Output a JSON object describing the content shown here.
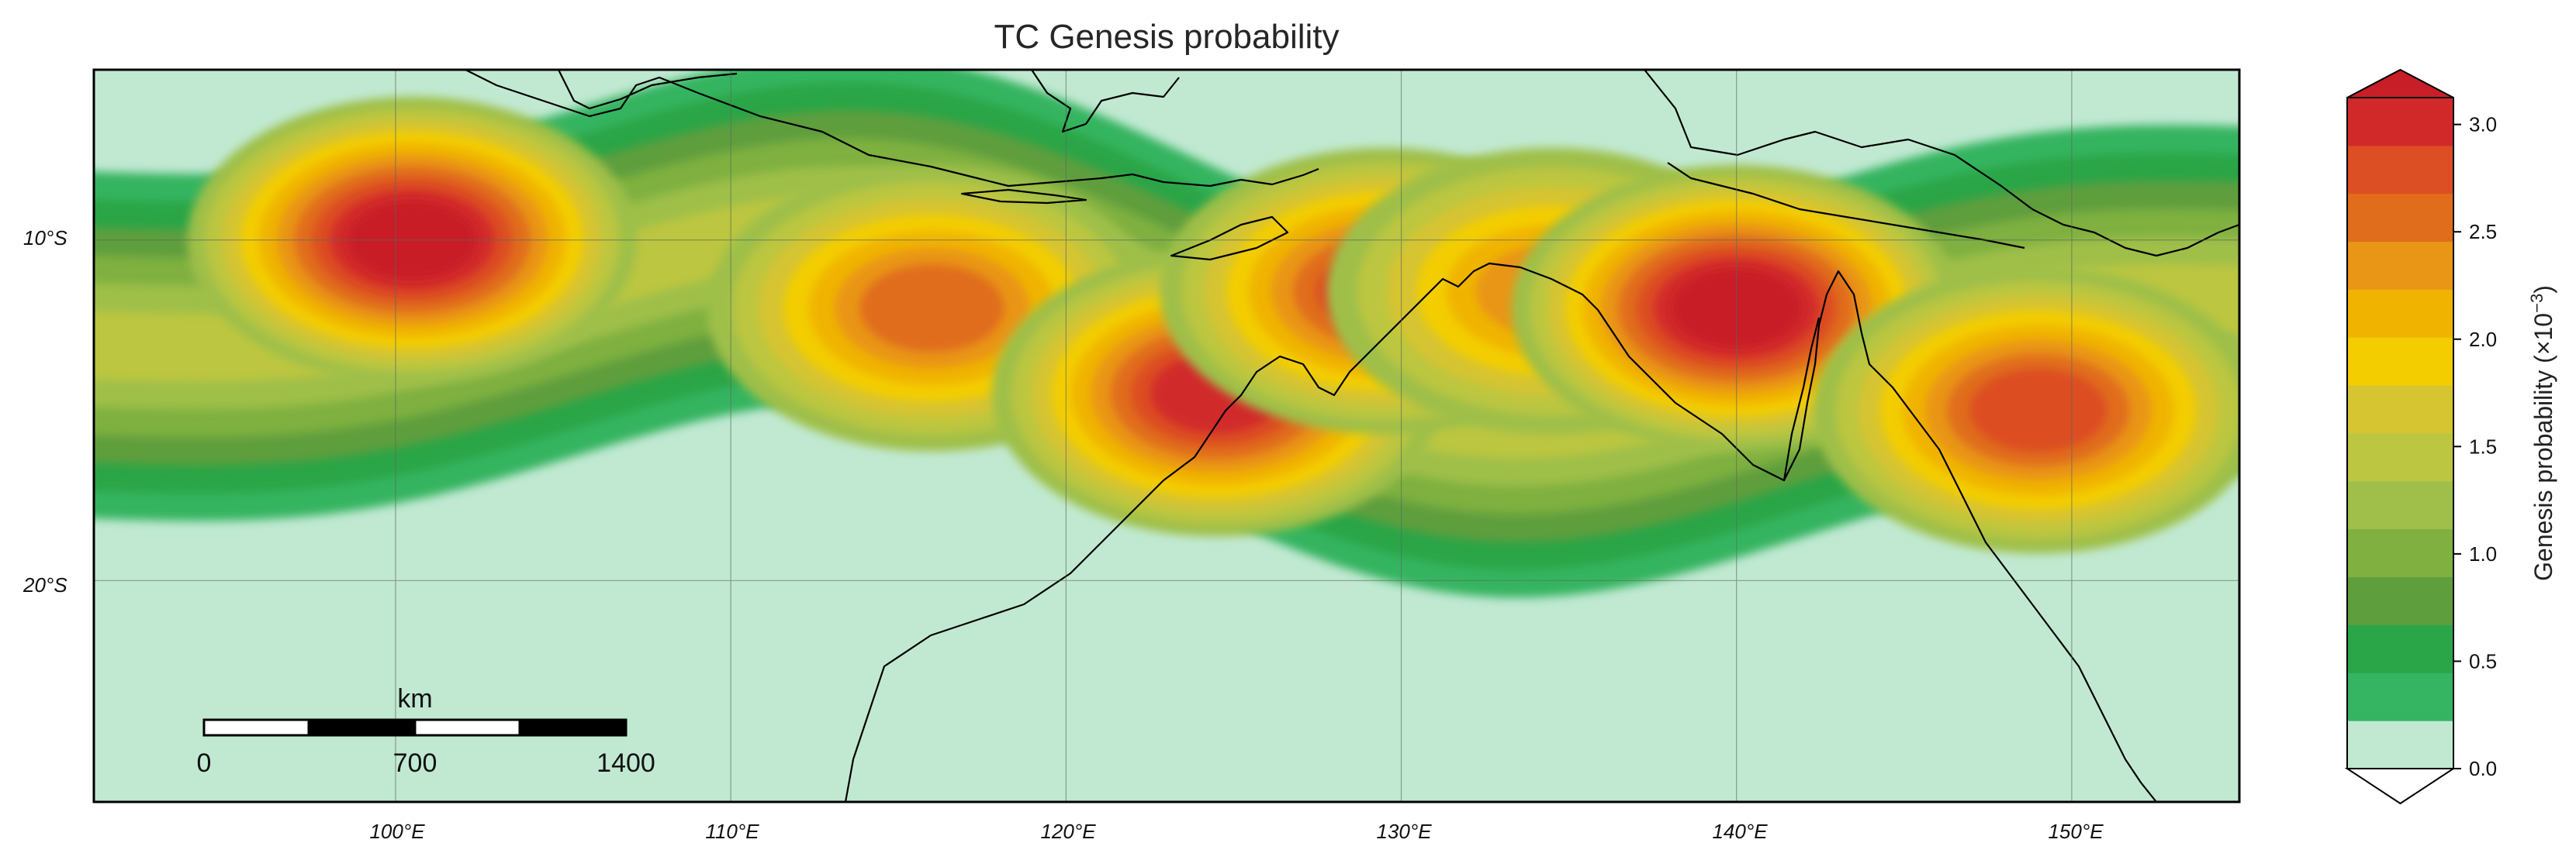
{
  "title": "TC Genesis probability",
  "colorbar": {
    "label": "Genesis probability (×10",
    "label_exponent": "−3",
    "label_close": ")",
    "ticks": [
      "0.0",
      "0.5",
      "1.0",
      "1.5",
      "2.0",
      "2.5",
      "3.0"
    ],
    "tick_values": [
      0.0,
      0.5,
      1.0,
      1.5,
      2.0,
      2.5,
      3.0
    ],
    "range": [
      0.0,
      3.125
    ],
    "extend": "both",
    "colors": [
      "#c1e9d2",
      "#35b461",
      "#2aa547",
      "#5e9e3c",
      "#7fb040",
      "#9fbf4a",
      "#bcc640",
      "#d6c431",
      "#f3cd00",
      "#f0b400",
      "#e99515",
      "#e06d1b",
      "#dc4e24",
      "#d1292a",
      "#c81e28"
    ]
  },
  "map": {
    "lon_range": [
      91,
      155
    ],
    "lat_range": [
      -26.5,
      -5
    ],
    "gridlines": true,
    "lon_ticks": [
      "100°E",
      "110°E",
      "120°E",
      "130°E",
      "140°E",
      "150°E"
    ],
    "lon_values": [
      100,
      110,
      120,
      130,
      140,
      150
    ],
    "lat_ticks": [
      "10°S",
      "20°S"
    ],
    "lat_values": [
      -10,
      -20
    ],
    "background_color": "#c1e9d2",
    "coastline_color": "#000000"
  },
  "scalebar": {
    "unit": "km",
    "labels": [
      "0",
      "700",
      "1400"
    ],
    "max_km": 1400,
    "segments": 4,
    "placement": "bottom-left"
  },
  "hotspots": [
    {
      "lon": 100.5,
      "lat": -10.0,
      "peak": 3.1
    },
    {
      "lon": 116.0,
      "lat": -12.0,
      "peak": 2.5
    },
    {
      "lon": 124.5,
      "lat": -14.5,
      "peak": 2.8
    },
    {
      "lon": 129.5,
      "lat": -11.5,
      "peak": 2.6
    },
    {
      "lon": 134.5,
      "lat": -11.5,
      "peak": 2.3
    },
    {
      "lon": 140.0,
      "lat": -12.0,
      "peak": 3.1
    },
    {
      "lon": 149.0,
      "lat": -15.0,
      "peak": 2.6
    }
  ]
}
